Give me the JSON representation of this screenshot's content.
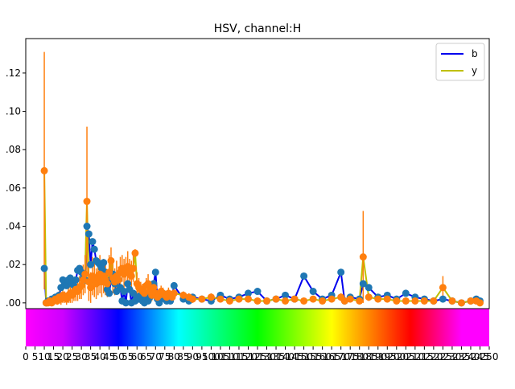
{
  "chart_data": {
    "type": "line",
    "title": "HSV, channel:H",
    "xlabel": "",
    "ylabel": "",
    "xlim": [
      0,
      250
    ],
    "ylim": [
      -0.003,
      0.138
    ],
    "yticks": [
      0.0,
      0.02,
      0.04,
      0.06,
      0.08,
      0.1,
      0.12
    ],
    "ytick_labels": [
      ".00",
      ".02",
      ".04",
      ".06",
      ".08",
      ".10",
      ".12"
    ],
    "xticks": [
      0,
      5,
      10,
      15,
      20,
      25,
      30,
      35,
      40,
      45,
      50,
      55,
      60,
      65,
      70,
      75,
      80,
      85,
      90,
      95,
      100,
      105,
      110,
      115,
      120,
      125,
      130,
      135,
      140,
      145,
      150,
      155,
      160,
      165,
      170,
      175,
      180,
      185,
      190,
      195,
      200,
      205,
      210,
      215,
      220,
      225,
      230,
      235,
      240,
      245,
      250
    ],
    "legend": {
      "placement": "top-right"
    },
    "colorbar": {
      "type": "hue-gradient",
      "range": [
        0,
        250
      ]
    },
    "series": [
      {
        "name": "b",
        "color": "#0000ee",
        "marker_color": "#1f77b4",
        "x": [
          10,
          11,
          12,
          13,
          14,
          15,
          16,
          17,
          18,
          19,
          20,
          21,
          22,
          23,
          24,
          25,
          26,
          27,
          28,
          29,
          30,
          31,
          32,
          33,
          34,
          35,
          36,
          37,
          38,
          39,
          40,
          41,
          42,
          43,
          44,
          45,
          46,
          47,
          48,
          49,
          50,
          51,
          52,
          53,
          54,
          55,
          56,
          57,
          58,
          59,
          60,
          61,
          62,
          63,
          64,
          65,
          66,
          67,
          68,
          69,
          70,
          71,
          72,
          73,
          74,
          75,
          76,
          77,
          78,
          79,
          80,
          85,
          88,
          90,
          95,
          100,
          105,
          110,
          115,
          120,
          125,
          130,
          135,
          140,
          145,
          150,
          155,
          160,
          165,
          170,
          172,
          175,
          180,
          182,
          185,
          190,
          195,
          200,
          205,
          210,
          215,
          220,
          225,
          230,
          235,
          240,
          243,
          245
        ],
        "y": [
          0.018,
          0.0,
          0.001,
          0.001,
          0.002,
          0.002,
          0.003,
          0.002,
          0.004,
          0.008,
          0.012,
          0.01,
          0.009,
          0.012,
          0.013,
          0.01,
          0.009,
          0.012,
          0.017,
          0.018,
          0.016,
          0.013,
          0.012,
          0.04,
          0.036,
          0.02,
          0.032,
          0.028,
          0.022,
          0.021,
          0.02,
          0.018,
          0.021,
          0.016,
          0.007,
          0.005,
          0.012,
          0.015,
          0.01,
          0.006,
          0.012,
          0.008,
          0.001,
          0.006,
          0.0,
          0.01,
          0.007,
          0.0,
          0.005,
          0.001,
          0.003,
          0.002,
          0.004,
          0.001,
          0.0,
          0.002,
          0.001,
          0.003,
          0.004,
          0.01,
          0.016,
          0.002,
          0.0,
          0.002,
          0.005,
          0.003,
          0.001,
          0.002,
          0.001,
          0.004,
          0.009,
          0.002,
          0.001,
          0.003,
          0.002,
          0.001,
          0.004,
          0.002,
          0.003,
          0.005,
          0.006,
          0.001,
          0.002,
          0.004,
          0.002,
          0.014,
          0.006,
          0.002,
          0.004,
          0.016,
          0.001,
          0.003,
          0.002,
          0.01,
          0.008,
          0.003,
          0.004,
          0.002,
          0.005,
          0.003,
          0.002,
          0.001,
          0.002,
          0.001,
          0.0,
          0.001,
          0.002,
          0.001
        ]
      },
      {
        "name": "y",
        "color": "#bfbf00",
        "marker_color": "#ff7f0e",
        "errorbar_color": "#ff7f0e",
        "x": [
          10,
          11,
          12,
          13,
          14,
          15,
          16,
          17,
          18,
          19,
          20,
          21,
          22,
          23,
          24,
          25,
          26,
          27,
          28,
          29,
          30,
          31,
          32,
          33,
          34,
          35,
          36,
          37,
          38,
          39,
          40,
          41,
          42,
          43,
          44,
          45,
          46,
          47,
          48,
          49,
          50,
          51,
          52,
          53,
          54,
          55,
          56,
          57,
          58,
          59,
          60,
          61,
          62,
          63,
          64,
          65,
          66,
          67,
          68,
          69,
          70,
          71,
          72,
          73,
          74,
          75,
          76,
          77,
          78,
          79,
          80,
          85,
          88,
          90,
          95,
          100,
          105,
          110,
          115,
          120,
          125,
          130,
          135,
          140,
          145,
          150,
          155,
          160,
          165,
          170,
          172,
          175,
          180,
          182,
          185,
          190,
          195,
          200,
          205,
          210,
          215,
          220,
          225,
          230,
          235,
          240,
          243,
          245
        ],
        "y": [
          0.069,
          0.0,
          0.0,
          0.001,
          0.0,
          0.001,
          0.002,
          0.001,
          0.003,
          0.002,
          0.004,
          0.003,
          0.002,
          0.004,
          0.005,
          0.004,
          0.006,
          0.007,
          0.006,
          0.008,
          0.009,
          0.012,
          0.015,
          0.053,
          0.011,
          0.008,
          0.014,
          0.012,
          0.01,
          0.013,
          0.015,
          0.011,
          0.014,
          0.012,
          0.01,
          0.016,
          0.022,
          0.013,
          0.011,
          0.014,
          0.012,
          0.016,
          0.018,
          0.015,
          0.017,
          0.019,
          0.016,
          0.014,
          0.018,
          0.026,
          0.01,
          0.008,
          0.007,
          0.006,
          0.005,
          0.009,
          0.01,
          0.006,
          0.004,
          0.008,
          0.005,
          0.003,
          0.004,
          0.006,
          0.005,
          0.004,
          0.003,
          0.005,
          0.004,
          0.003,
          0.005,
          0.004,
          0.003,
          0.002,
          0.002,
          0.003,
          0.002,
          0.001,
          0.002,
          0.002,
          0.001,
          0.001,
          0.002,
          0.001,
          0.002,
          0.001,
          0.002,
          0.001,
          0.002,
          0.003,
          0.001,
          0.002,
          0.001,
          0.024,
          0.003,
          0.002,
          0.002,
          0.001,
          0.001,
          0.001,
          0.001,
          0.001,
          0.008,
          0.001,
          0.0,
          0.001,
          0.001,
          0.0
        ],
        "err": [
          0.062,
          0,
          0.001,
          0.001,
          0.001,
          0.001,
          0.002,
          0.002,
          0.003,
          0.003,
          0.004,
          0.003,
          0.003,
          0.004,
          0.005,
          0.004,
          0.005,
          0.006,
          0.005,
          0.006,
          0.007,
          0.008,
          0.01,
          0.039,
          0.01,
          0.008,
          0.01,
          0.009,
          0.008,
          0.009,
          0.01,
          0.008,
          0.009,
          0.008,
          0.007,
          0.009,
          0.007,
          0.008,
          0.007,
          0.008,
          0.007,
          0.008,
          0.007,
          0.008,
          0.007,
          0.008,
          0.007,
          0.008,
          0.007,
          0.002,
          0.006,
          0.005,
          0.004,
          0.004,
          0.003,
          0.004,
          0.005,
          0.004,
          0.003,
          0.004,
          0.003,
          0.002,
          0.003,
          0.003,
          0.003,
          0.002,
          0.002,
          0.003,
          0.002,
          0.002,
          0.003,
          0.002,
          0.002,
          0.002,
          0.001,
          0.002,
          0.001,
          0.001,
          0.001,
          0.001,
          0.001,
          0.001,
          0.001,
          0.001,
          0.001,
          0.001,
          0.001,
          0.001,
          0.001,
          0.002,
          0.001,
          0.001,
          0.001,
          0.024,
          0.002,
          0.001,
          0.001,
          0.001,
          0.001,
          0.001,
          0.001,
          0.001,
          0.006,
          0.001,
          0,
          0.001,
          0.001,
          0
        ]
      }
    ]
  }
}
